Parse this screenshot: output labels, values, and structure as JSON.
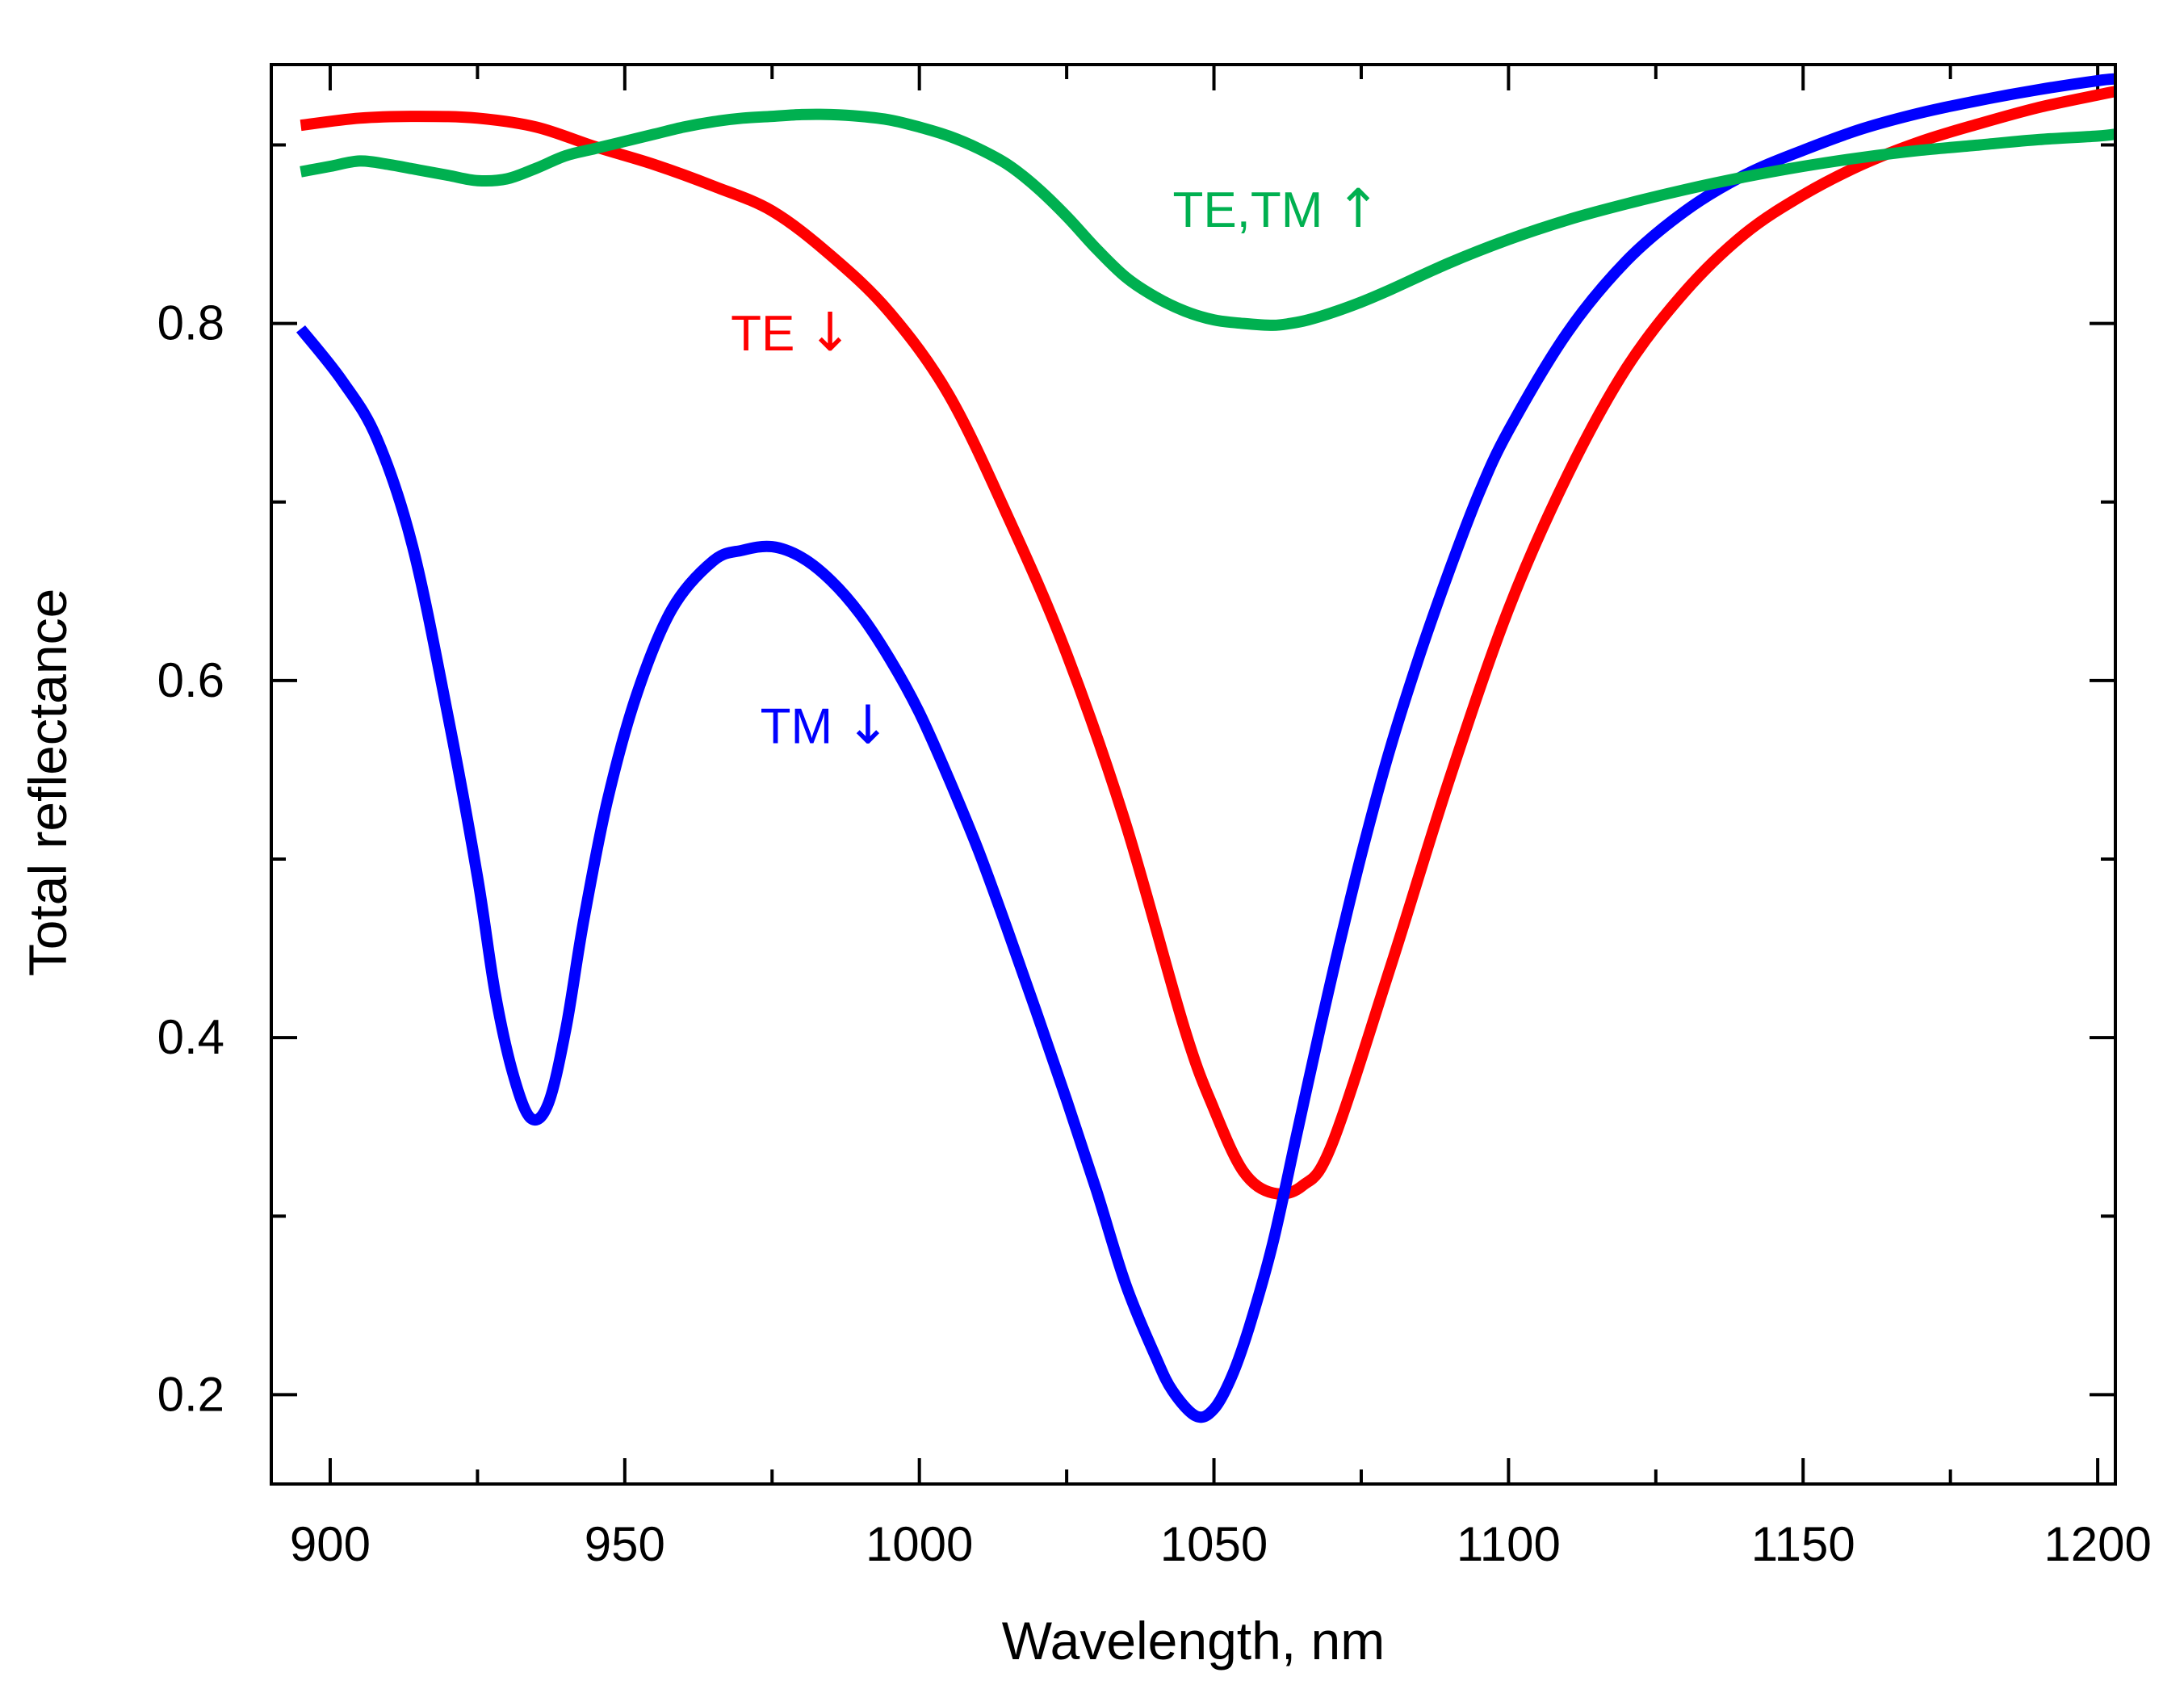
{
  "chart_data": {
    "type": "line",
    "xlabel": "Wavelength, nm",
    "ylabel": "Total reflectance",
    "xlim": [
      890,
      1203
    ],
    "ylim": [
      0.15,
      0.945
    ],
    "x_major_ticks": [
      900,
      950,
      1000,
      1050,
      1100,
      1150,
      1200
    ],
    "x_minor_ticks": [
      925,
      975,
      1025,
      1075,
      1125,
      1175
    ],
    "x_tick_labels": [
      "900",
      "950",
      "1000",
      "1050",
      "1100",
      "1150",
      "1200"
    ],
    "y_major_ticks": [
      0.2,
      0.4,
      0.6,
      0.8
    ],
    "y_minor_ticks": [
      0.3,
      0.5,
      0.7,
      0.9
    ],
    "y_tick_labels": [
      "0.2",
      "0.4",
      "0.6",
      "0.8"
    ],
    "grid": false,
    "series": [
      {
        "name": "TE ↓",
        "color": "#ff0000",
        "label_text": "TE",
        "label_arrow": "↓",
        "label_position": [
          968,
          0.785
        ],
        "x": [
          895,
          905,
          915,
          925,
          935,
          945,
          955,
          965,
          975,
          985,
          995,
          1005,
          1015,
          1025,
          1035,
          1045,
          1050,
          1055,
          1060,
          1065,
          1070,
          1080,
          1090,
          1100,
          1110,
          1120,
          1130,
          1140,
          1150,
          1160,
          1170,
          1180,
          1190,
          1200,
          1203
        ],
        "y": [
          0.911,
          0.915,
          0.916,
          0.915,
          0.91,
          0.899,
          0.889,
          0.877,
          0.863,
          0.838,
          0.806,
          0.76,
          0.692,
          0.615,
          0.52,
          0.405,
          0.36,
          0.325,
          0.313,
          0.317,
          0.34,
          0.44,
          0.545,
          0.64,
          0.715,
          0.775,
          0.818,
          0.85,
          0.872,
          0.889,
          0.902,
          0.912,
          0.921,
          0.928,
          0.93
        ]
      },
      {
        "name": "TM ↓",
        "color": "#0000ff",
        "label_text": "TM",
        "label_arrow": "↓",
        "label_position": [
          973,
          0.565
        ],
        "x": [
          895,
          902,
          908,
          914,
          920,
          925,
          928,
          931,
          934,
          937,
          940,
          943,
          947,
          952,
          958,
          965,
          970,
          975,
          980,
          985,
          990,
          995,
          1000,
          1005,
          1010,
          1015,
          1020,
          1025,
          1030,
          1035,
          1040,
          1043,
          1047,
          1050,
          1053,
          1056,
          1060,
          1064,
          1068,
          1072,
          1076,
          1080,
          1085,
          1090,
          1095,
          1100,
          1110,
          1120,
          1130,
          1140,
          1150,
          1160,
          1170,
          1180,
          1190,
          1200,
          1203
        ],
        "y": [
          0.797,
          0.768,
          0.735,
          0.675,
          0.58,
          0.49,
          0.425,
          0.38,
          0.355,
          0.363,
          0.405,
          0.465,
          0.532,
          0.592,
          0.64,
          0.667,
          0.673,
          0.675,
          0.669,
          0.656,
          0.637,
          0.612,
          0.582,
          0.545,
          0.505,
          0.46,
          0.413,
          0.365,
          0.315,
          0.262,
          0.222,
          0.202,
          0.188,
          0.192,
          0.21,
          0.238,
          0.285,
          0.345,
          0.405,
          0.462,
          0.515,
          0.563,
          0.615,
          0.662,
          0.705,
          0.74,
          0.795,
          0.835,
          0.863,
          0.883,
          0.897,
          0.909,
          0.918,
          0.925,
          0.931,
          0.936,
          0.937
        ]
      },
      {
        "name": "TE,TM ↑",
        "color": "#00b050",
        "label_text": "TE,TM",
        "label_arrow": "↑",
        "label_position": [
          1043,
          0.854
        ],
        "x": [
          895,
          900,
          905,
          910,
          915,
          920,
          925,
          930,
          935,
          940,
          945,
          950,
          955,
          960,
          965,
          970,
          975,
          980,
          985,
          990,
          995,
          1000,
          1005,
          1010,
          1015,
          1020,
          1025,
          1030,
          1035,
          1040,
          1045,
          1050,
          1055,
          1060,
          1063,
          1066,
          1070,
          1075,
          1080,
          1090,
          1100,
          1110,
          1120,
          1130,
          1140,
          1150,
          1160,
          1170,
          1180,
          1190,
          1200,
          1203
        ],
        "y": [
          0.885,
          0.888,
          0.891,
          0.889,
          0.886,
          0.883,
          0.88,
          0.881,
          0.887,
          0.894,
          0.898,
          0.902,
          0.906,
          0.91,
          0.913,
          0.915,
          0.916,
          0.917,
          0.917,
          0.916,
          0.914,
          0.91,
          0.905,
          0.898,
          0.889,
          0.876,
          0.86,
          0.842,
          0.826,
          0.815,
          0.807,
          0.802,
          0.8,
          0.799,
          0.8,
          0.802,
          0.806,
          0.812,
          0.819,
          0.834,
          0.847,
          0.858,
          0.867,
          0.875,
          0.882,
          0.888,
          0.893,
          0.897,
          0.9,
          0.903,
          0.905,
          0.906
        ]
      }
    ]
  }
}
